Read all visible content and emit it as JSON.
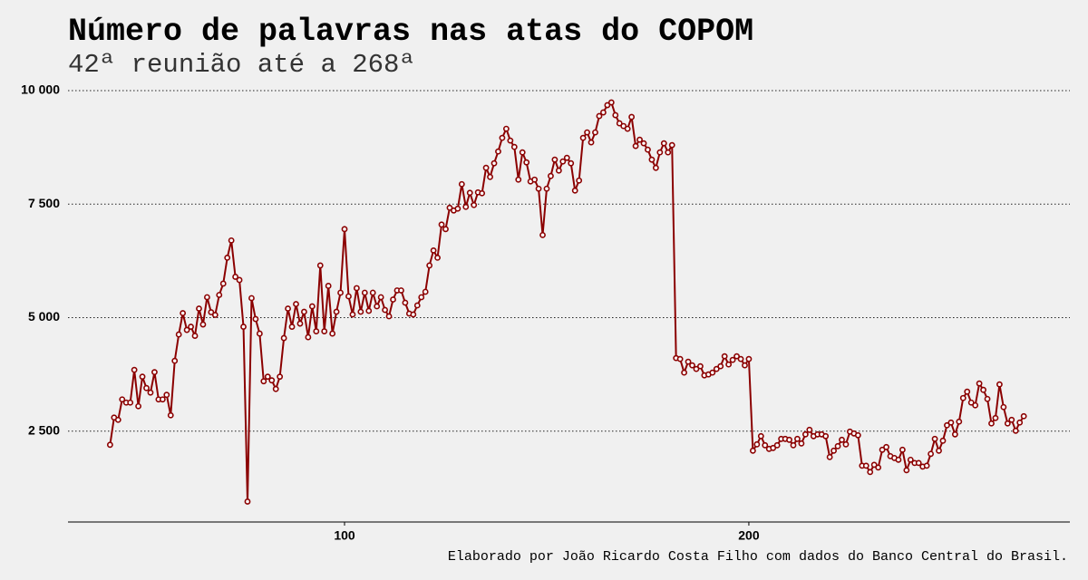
{
  "chart_data": {
    "type": "line",
    "title": "Número de palavras nas atas do COPOM",
    "subtitle": "42ª reunião até a 268ª",
    "caption": "Elaborado por João Ricardo Costa Filho com dados do Banco Central do Brasil.",
    "color": "#8b0000",
    "grid": true,
    "x": [
      42,
      43,
      44,
      45,
      46,
      47,
      48,
      49,
      50,
      51,
      52,
      53,
      54,
      55,
      56,
      57,
      58,
      59,
      60,
      61,
      62,
      63,
      64,
      65,
      66,
      67,
      68,
      69,
      70,
      71,
      72,
      73,
      74,
      75,
      76,
      77,
      78,
      79,
      80,
      81,
      82,
      83,
      84,
      85,
      86,
      87,
      88,
      89,
      90,
      91,
      92,
      93,
      94,
      95,
      96,
      97,
      98,
      99,
      100,
      101,
      102,
      103,
      104,
      105,
      106,
      107,
      108,
      109,
      110,
      111,
      112,
      113,
      114,
      115,
      116,
      117,
      118,
      119,
      120,
      121,
      122,
      123,
      124,
      125,
      126,
      127,
      128,
      129,
      130,
      131,
      132,
      133,
      134,
      135,
      136,
      137,
      138,
      139,
      140,
      141,
      142,
      143,
      144,
      145,
      146,
      147,
      148,
      149,
      150,
      151,
      152,
      153,
      154,
      155,
      156,
      157,
      158,
      159,
      160,
      161,
      162,
      163,
      164,
      165,
      166,
      167,
      168,
      169,
      170,
      171,
      172,
      173,
      174,
      175,
      176,
      177,
      178,
      179,
      180,
      181,
      182,
      183,
      184,
      185,
      186,
      187,
      188,
      189,
      190,
      191,
      192,
      193,
      194,
      195,
      196,
      197,
      198,
      199,
      200,
      201,
      202,
      203,
      204,
      205,
      206,
      207,
      208,
      209,
      210,
      211,
      212,
      213,
      214,
      215,
      216,
      217,
      218,
      219,
      220,
      221,
      222,
      223,
      224,
      225,
      226,
      227,
      228,
      229,
      230,
      231,
      232,
      233,
      234,
      235,
      236,
      237,
      238,
      239,
      240,
      241,
      242,
      243,
      244,
      245,
      246,
      247,
      248,
      249,
      250,
      251,
      252,
      253,
      254,
      255,
      256,
      257,
      258,
      259,
      260,
      261,
      262,
      263,
      264,
      265,
      266,
      267,
      268
    ],
    "values": [
      2200,
      2800,
      2750,
      3200,
      3130,
      3130,
      3850,
      3050,
      3700,
      3450,
      3350,
      3800,
      3200,
      3200,
      3300,
      2850,
      4050,
      4630,
      5100,
      4730,
      4800,
      4600,
      5200,
      4850,
      5450,
      5120,
      5060,
      5500,
      5750,
      6320,
      6700,
      5900,
      5830,
      4800,
      950,
      5430,
      4970,
      4650,
      3600,
      3700,
      3620,
      3430,
      3700,
      4550,
      5200,
      4800,
      5300,
      4870,
      5130,
      4570,
      5250,
      4700,
      6150,
      4700,
      5700,
      4650,
      5130,
      5550,
      6950,
      5470,
      5070,
      5650,
      5130,
      5550,
      5150,
      5550,
      5250,
      5450,
      5170,
      5030,
      5400,
      5600,
      5600,
      5330,
      5090,
      5070,
      5270,
      5450,
      5570,
      6150,
      6480,
      6320,
      7050,
      6950,
      7420,
      7360,
      7400,
      7940,
      7440,
      7750,
      7480,
      7760,
      7740,
      8300,
      8100,
      8400,
      8660,
      8960,
      9160,
      8900,
      8760,
      8040,
      8640,
      8420,
      8000,
      8040,
      7840,
      6820,
      7840,
      8120,
      8480,
      8240,
      8440,
      8520,
      8400,
      7800,
      8020,
      8960,
      9080,
      8860,
      9080,
      9440,
      9520,
      9680,
      9740,
      9460,
      9280,
      9220,
      9160,
      9420,
      8780,
      8920,
      8840,
      8700,
      8480,
      8300,
      8640,
      8840,
      8640,
      8800,
      4110,
      4090,
      3790,
      4030,
      3950,
      3870,
      3930,
      3730,
      3750,
      3790,
      3870,
      3930,
      4150,
      3970,
      4070,
      4150,
      4090,
      3950,
      4090,
      2070,
      2210,
      2390,
      2190,
      2110,
      2130,
      2190,
      2330,
      2330,
      2310,
      2190,
      2330,
      2230,
      2430,
      2530,
      2390,
      2430,
      2430,
      2390,
      1930,
      2070,
      2170,
      2310,
      2210,
      2490,
      2450,
      2410,
      1740,
      1740,
      1600,
      1760,
      1700,
      2090,
      2150,
      1950,
      1910,
      1870,
      2090,
      1640,
      1870,
      1800,
      1800,
      1720,
      1740,
      2000,
      2330,
      2070,
      2290,
      2630,
      2690,
      2430,
      2710,
      3230,
      3370,
      3130,
      3070,
      3550,
      3410,
      3210,
      2670,
      2790,
      3530,
      3030,
      2670,
      2750,
      2510,
      2690,
      2830
    ],
    "xlim": [
      31.6,
      279.4
    ],
    "xticks": [
      100,
      200
    ],
    "ylim": [
      500,
      10100
    ],
    "yticks": [
      {
        "value": 2500,
        "label": "2 500"
      },
      {
        "value": 5000,
        "label": "5 000"
      },
      {
        "value": 7500,
        "label": "7 500"
      },
      {
        "value": 10000,
        "label": "10 000"
      }
    ]
  }
}
